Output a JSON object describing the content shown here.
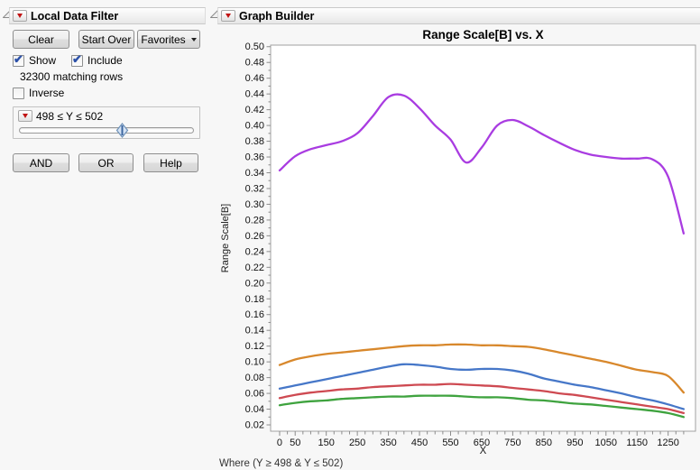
{
  "app": {
    "background": "#f7f7f7",
    "accent_red": "#c11212"
  },
  "local_data_filter": {
    "title": "Local Data Filter",
    "clear_label": "Clear",
    "start_over_label": "Start Over",
    "favorites_label": "Favorites",
    "show_label": "Show",
    "show_checked": true,
    "include_label": "Include",
    "include_checked": true,
    "matching_rows": "32300 matching rows",
    "inverse_label": "Inverse",
    "inverse_checked": false,
    "filter_expression": "498 ≤ Y ≤ 502",
    "slider_position_pct": 59,
    "and_label": "AND",
    "or_label": "OR",
    "help_label": "Help"
  },
  "graph_builder": {
    "title": "Graph Builder",
    "where_note": "Where (Y ≥ 498 & Y ≤ 502)"
  },
  "chart_data": {
    "type": "line",
    "title": "Range Scale[B] vs. X",
    "xlabel": "X",
    "ylabel": "Range Scale[B]",
    "xlim": [
      -29,
      1338
    ],
    "ylim": [
      0.012,
      0.502
    ],
    "grid": false,
    "legend_position": "none",
    "y_ticks": {
      "min": 0.02,
      "max": 0.5,
      "step": 0.02,
      "minor_step": 0.01
    },
    "x_tick_labels": [
      0,
      50,
      150,
      250,
      350,
      450,
      550,
      650,
      750,
      850,
      950,
      1050,
      1150,
      1250
    ],
    "x_minor_tick_step": 25,
    "x_data_range": [
      0,
      1300
    ],
    "x": [
      0,
      50,
      100,
      150,
      200,
      250,
      300,
      350,
      400,
      450,
      500,
      550,
      600,
      650,
      700,
      750,
      800,
      850,
      900,
      950,
      1000,
      1050,
      1100,
      1150,
      1200,
      1250,
      1300
    ],
    "series": [
      {
        "name": "purple",
        "color": "#a93ce1",
        "values": [
          0.343,
          0.361,
          0.37,
          0.375,
          0.38,
          0.39,
          0.412,
          0.436,
          0.438,
          0.422,
          0.4,
          0.382,
          0.353,
          0.372,
          0.4,
          0.407,
          0.399,
          0.388,
          0.378,
          0.369,
          0.363,
          0.36,
          0.358,
          0.358,
          0.357,
          0.335,
          0.263
        ]
      },
      {
        "name": "orange",
        "color": "#d8882c",
        "values": [
          0.096,
          0.103,
          0.107,
          0.11,
          0.112,
          0.114,
          0.116,
          0.118,
          0.12,
          0.121,
          0.121,
          0.122,
          0.122,
          0.121,
          0.121,
          0.12,
          0.119,
          0.116,
          0.112,
          0.108,
          0.104,
          0.1,
          0.095,
          0.09,
          0.087,
          0.082,
          0.061
        ]
      },
      {
        "name": "blue",
        "color": "#4677c8",
        "values": [
          0.066,
          0.07,
          0.074,
          0.078,
          0.082,
          0.086,
          0.09,
          0.094,
          0.097,
          0.096,
          0.094,
          0.091,
          0.09,
          0.091,
          0.091,
          0.089,
          0.085,
          0.079,
          0.075,
          0.071,
          0.068,
          0.064,
          0.06,
          0.055,
          0.051,
          0.046,
          0.04
        ]
      },
      {
        "name": "red",
        "color": "#ce4a52",
        "values": [
          0.054,
          0.058,
          0.061,
          0.063,
          0.065,
          0.066,
          0.068,
          0.069,
          0.07,
          0.071,
          0.071,
          0.072,
          0.071,
          0.07,
          0.069,
          0.067,
          0.065,
          0.063,
          0.06,
          0.058,
          0.055,
          0.052,
          0.049,
          0.046,
          0.043,
          0.04,
          0.035
        ]
      },
      {
        "name": "green",
        "color": "#3fa33f",
        "values": [
          0.045,
          0.048,
          0.05,
          0.051,
          0.053,
          0.054,
          0.055,
          0.056,
          0.056,
          0.057,
          0.057,
          0.057,
          0.056,
          0.055,
          0.055,
          0.054,
          0.052,
          0.051,
          0.049,
          0.047,
          0.046,
          0.044,
          0.042,
          0.04,
          0.038,
          0.035,
          0.03
        ]
      }
    ]
  }
}
